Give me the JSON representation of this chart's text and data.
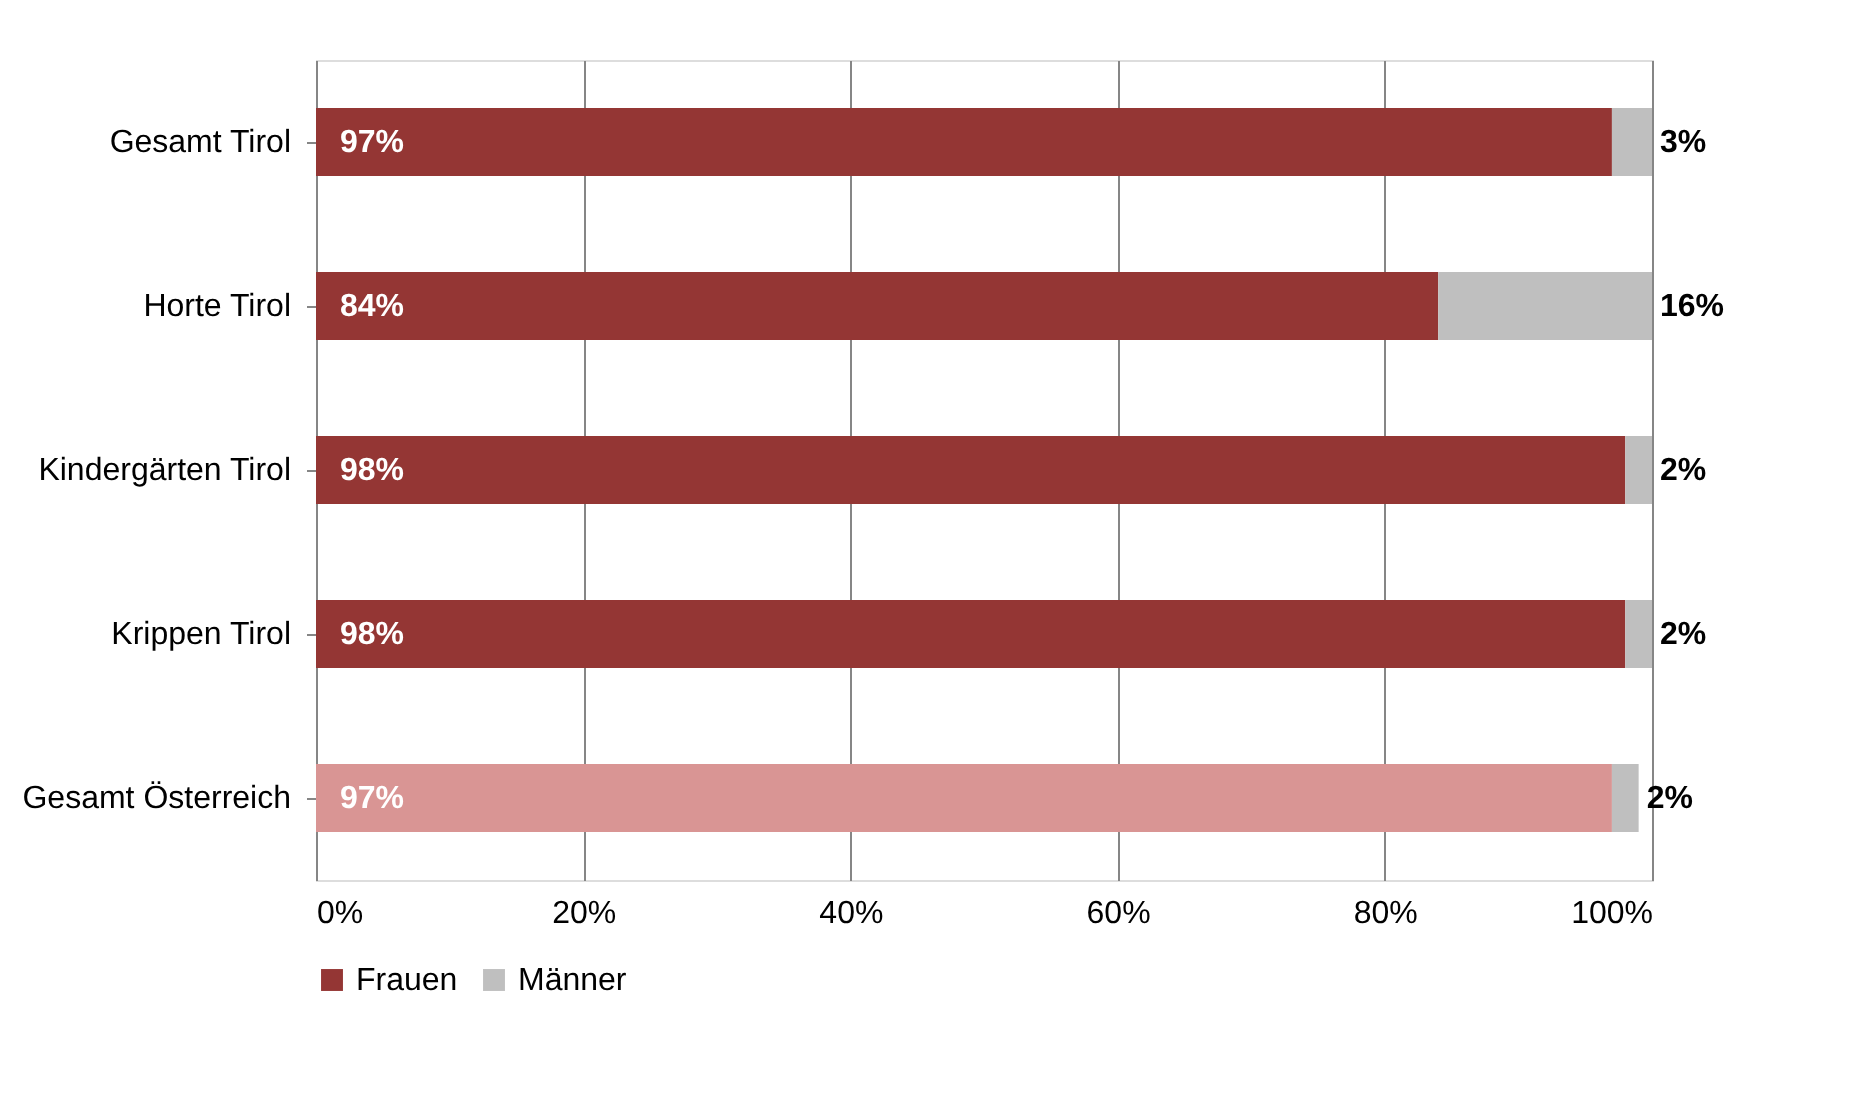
{
  "chart_data": {
    "type": "bar",
    "orientation": "horizontal",
    "stacked": true,
    "categories": [
      "Gesamt Tirol",
      "Horte Tirol",
      "Kindergärten Tirol",
      "Krippen Tirol",
      "Gesamt Österreich"
    ],
    "series": [
      {
        "name": "Frauen",
        "color": "#943634",
        "colors": [
          "#943634",
          "#943634",
          "#943634",
          "#943634",
          "#d99594"
        ],
        "values": [
          97,
          84,
          98,
          98,
          97
        ],
        "value_labels": [
          "97%",
          "84%",
          "98%",
          "98%",
          "97%"
        ]
      },
      {
        "name": "Männer",
        "color": "#bfbfbf",
        "values": [
          3,
          16,
          2,
          2,
          2
        ],
        "value_labels": [
          "3%",
          "16%",
          "2%",
          "2%",
          "2%"
        ]
      }
    ],
    "xlim": [
      0,
      100
    ],
    "xticks": [
      {
        "value": 0,
        "label": "0%"
      },
      {
        "value": 20,
        "label": "20%"
      },
      {
        "value": 40,
        "label": "40%"
      },
      {
        "value": 60,
        "label": "60%"
      },
      {
        "value": 80,
        "label": "80%"
      },
      {
        "value": 100,
        "label": "100%"
      }
    ],
    "grid": "x",
    "legend": "bottom"
  }
}
